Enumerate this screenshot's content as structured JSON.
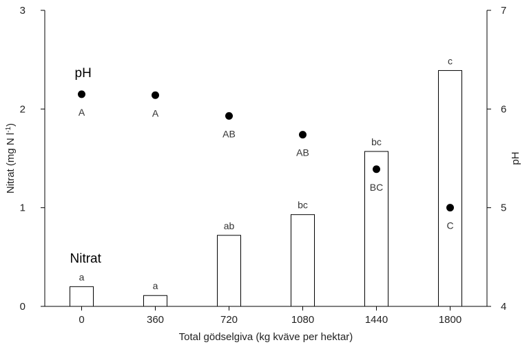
{
  "chart_data": {
    "type": "bar",
    "xlabel": "Total gödselgiva (kg kväve per hektar)",
    "ylabel_left": "Nitrat (mg N l-1)",
    "ylabel_left_main": "Nitrat (mg N l",
    "ylabel_left_sup": "-1",
    "ylabel_left_end": ")",
    "ylabel_right": "pH",
    "categories": [
      "0",
      "360",
      "720",
      "1080",
      "1440",
      "1800"
    ],
    "ylim_left": [
      0,
      3
    ],
    "yticks_left": [
      0,
      1,
      2,
      3
    ],
    "ylim_right": [
      4,
      7
    ],
    "yticks_right": [
      4,
      5,
      6,
      7
    ],
    "grid": false,
    "series": [
      {
        "name": "Nitrat",
        "type": "bar",
        "axis": "left",
        "values": [
          0.2,
          0.11,
          0.72,
          0.93,
          1.57,
          2.39
        ],
        "labels": [
          "a",
          "a",
          "ab",
          "bc",
          "bc",
          "c"
        ]
      },
      {
        "name": "pH",
        "type": "scatter",
        "axis": "right",
        "values": [
          6.15,
          6.14,
          5.93,
          5.74,
          5.39,
          5.0
        ],
        "labels": [
          "A",
          "A",
          "AB",
          "AB",
          "BC",
          "C"
        ]
      }
    ]
  }
}
